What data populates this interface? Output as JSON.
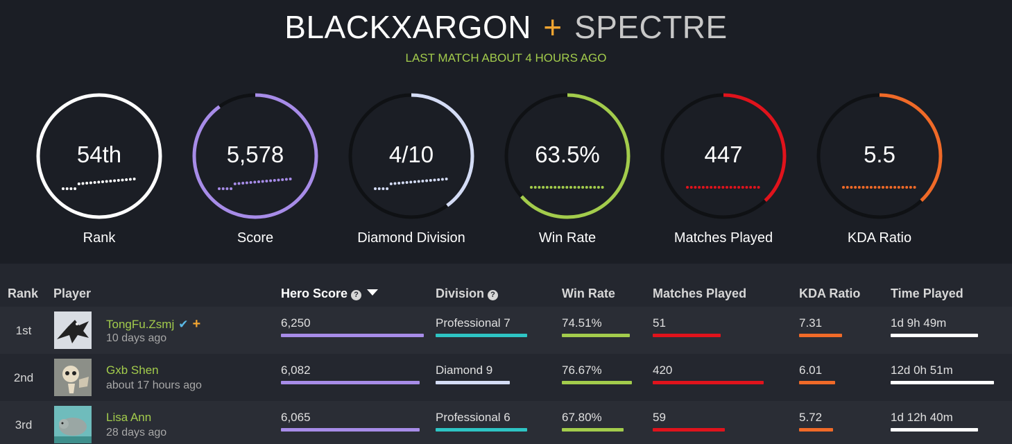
{
  "header": {
    "player": "BLACKXARGON",
    "plus": "+",
    "hero": "SPECTRE",
    "last_match": "LAST MATCH ABOUT 4 HOURS AGO"
  },
  "stats": [
    {
      "value": "54th",
      "label": "Rank",
      "color": "#ffffff",
      "fill": 1.0
    },
    {
      "value": "5,578",
      "label": "Score",
      "color": "#a78ce8",
      "fill": 0.9
    },
    {
      "value": "4/10",
      "label": "Diamond Division",
      "color": "#d4dcf5",
      "fill": 0.4
    },
    {
      "value": "63.5%",
      "label": "Win Rate",
      "color": "#a3cc4c",
      "fill": 0.635
    },
    {
      "value": "447",
      "label": "Matches Played",
      "color": "#e0131c",
      "fill": 0.38
    },
    {
      "value": "5.5",
      "label": "KDA Ratio",
      "color": "#f06a28",
      "fill": 0.38
    }
  ],
  "table": {
    "headers": {
      "rank": "Rank",
      "player": "Player",
      "hero_score": "Hero Score",
      "division": "Division",
      "win_rate": "Win Rate",
      "matches": "Matches Played",
      "kda": "KDA Ratio",
      "time": "Time Played"
    },
    "help_glyph": "?",
    "rows": [
      {
        "rank": "1st",
        "name": "TongFu.Zsmj",
        "verified": true,
        "plus": true,
        "ago": "10 days ago",
        "score": "6,250",
        "score_frac": 1.0,
        "division": "Professional 7",
        "div_color": "#2ec4c4",
        "div_frac": 0.85,
        "win": "74.51%",
        "win_frac": 0.97,
        "matches": "51",
        "matches_frac": 0.6,
        "kda": "7.31",
        "kda_frac": 0.6,
        "time": "1d 9h 49m",
        "time_frac": 0.84
      },
      {
        "rank": "2nd",
        "name": "Gxb  Shen",
        "verified": false,
        "plus": false,
        "ago": "about 17 hours ago",
        "score": "6,082",
        "score_frac": 0.97,
        "division": "Diamond 9",
        "div_color": "#d4dcf5",
        "div_frac": 0.69,
        "win": "76.67%",
        "win_frac": 1.0,
        "matches": "420",
        "matches_frac": 0.98,
        "kda": "6.01",
        "kda_frac": 0.5,
        "time": "12d 0h 51m",
        "time_frac": 0.99
      },
      {
        "rank": "3rd",
        "name": "Lisa Ann",
        "verified": false,
        "plus": false,
        "ago": "28 days ago",
        "score": "6,065",
        "score_frac": 0.97,
        "division": "Professional 6",
        "div_color": "#2ec4c4",
        "div_frac": 0.85,
        "win": "67.80%",
        "win_frac": 0.88,
        "matches": "59",
        "matches_frac": 0.64,
        "kda": "5.72",
        "kda_frac": 0.48,
        "time": "1d 12h 40m",
        "time_frac": 0.84
      }
    ]
  },
  "colors": {
    "score_bar": "#a78ce8",
    "win_bar": "#a3cc4c",
    "matches_bar": "#e0131c",
    "kda_bar": "#f06a28",
    "time_bar": "#ffffff"
  }
}
